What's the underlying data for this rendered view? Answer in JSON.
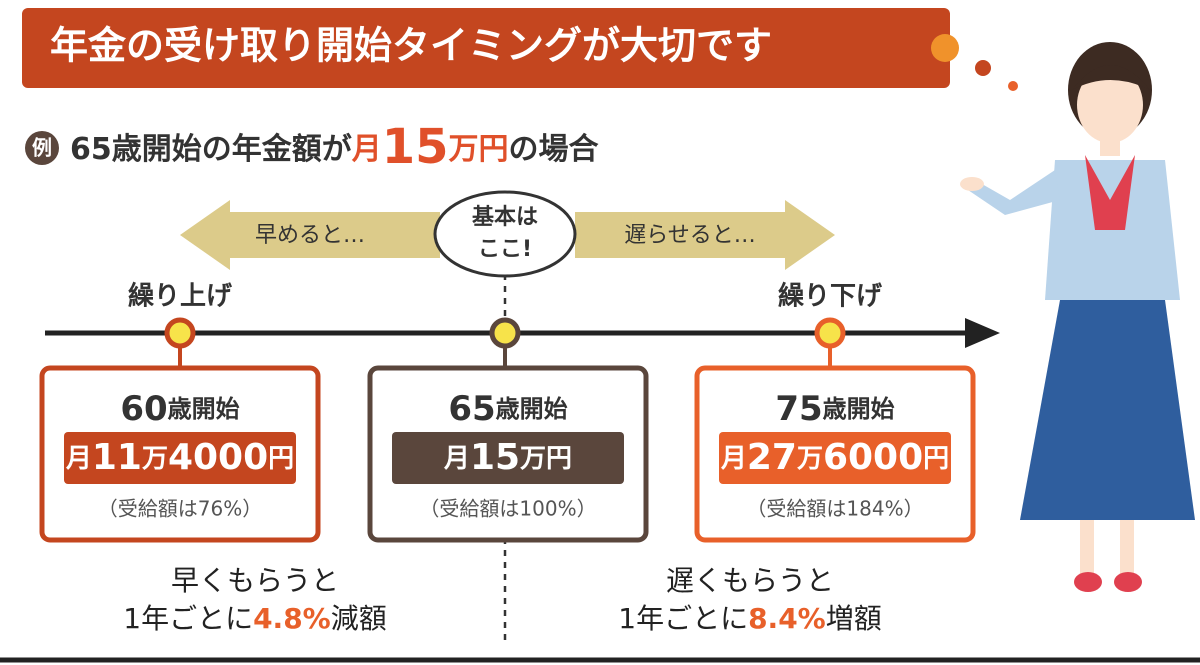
{
  "header": {
    "title": "年金の受け取り開始タイミングが大切です"
  },
  "example": {
    "badge": "例",
    "parts": [
      "65歳開始の年金額が",
      "月",
      "15",
      "万円",
      "の場合"
    ]
  },
  "arrows": {
    "left": "早めると…",
    "center": [
      "基本は",
      "ここ!"
    ],
    "right": "遅らせると…"
  },
  "timeline": {
    "left_label": "繰り上げ",
    "right_label": "繰り下げ"
  },
  "cards": [
    {
      "age": "60",
      "suffix": "歳開始",
      "amount": [
        "月",
        "11",
        "万",
        "4000",
        "円"
      ],
      "note": "（受給額は76%）"
    },
    {
      "age": "65",
      "suffix": "歳開始",
      "amount": [
        "月",
        "15",
        "万円"
      ],
      "note": "（受給額は100%）"
    },
    {
      "age": "75",
      "suffix": "歳開始",
      "amount": [
        "月",
        "27",
        "万",
        "6000",
        "円"
      ],
      "note": "（受給額は184%）"
    }
  ],
  "notes": [
    {
      "line1": "早くもらうと",
      "line2": [
        "1年ごとに",
        "4.8%",
        "減額"
      ]
    },
    {
      "line1": "遅くもらうと",
      "line2": [
        "1年ごとに",
        "8.4%",
        "増額"
      ]
    }
  ]
}
